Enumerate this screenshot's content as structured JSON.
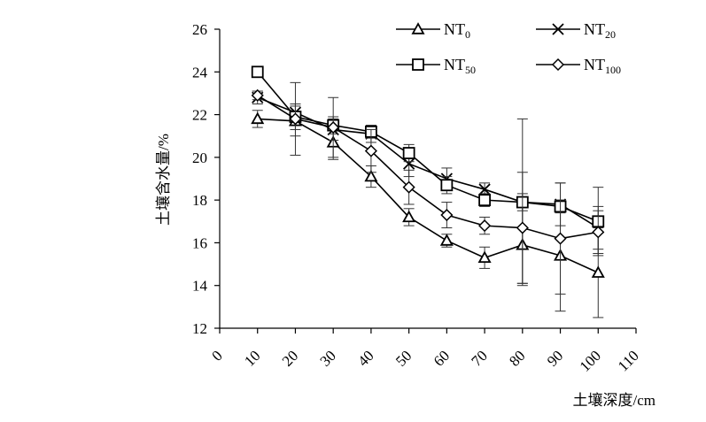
{
  "chart_data": {
    "type": "line",
    "xlabel": "土壤深度/cm",
    "ylabel": "土壤含水量/%",
    "xlim": [
      0,
      110
    ],
    "ylim": [
      12,
      26
    ],
    "x_ticks": [
      "0",
      "10",
      "20",
      "30",
      "40",
      "50",
      "60",
      "70",
      "80",
      "90",
      "100",
      "110"
    ],
    "y_ticks": [
      "12",
      "14",
      "16",
      "18",
      "20",
      "22",
      "24",
      "26"
    ],
    "legend_position": "top-right",
    "grid": false,
    "series": [
      {
        "name": "NT",
        "subscript": "0",
        "marker": "triangle",
        "x": [
          10,
          20,
          30,
          40,
          50,
          60,
          70,
          80,
          90,
          100
        ],
        "values": [
          21.8,
          21.7,
          20.7,
          19.1,
          17.2,
          16.1,
          15.3,
          15.9,
          15.4,
          14.6
        ],
        "error": [
          0.4,
          0.7,
          0.8,
          0.5,
          0.4,
          0.3,
          0.5,
          1.8,
          2.6,
          2.1
        ]
      },
      {
        "name": "NT",
        "subscript": "20",
        "marker": "x",
        "x": [
          10,
          20,
          30,
          40,
          50,
          60,
          70,
          80,
          90,
          100
        ],
        "values": [
          22.8,
          22.1,
          21.3,
          21.1,
          19.7,
          19.0,
          18.5,
          17.9,
          17.8,
          16.7
        ],
        "error": [
          0.3,
          0.4,
          0.5,
          0.4,
          0.6,
          0.5,
          0.3,
          0.4,
          1.0,
          1.0
        ]
      },
      {
        "name": "NT",
        "subscript": "50",
        "marker": "square",
        "x": [
          10,
          20,
          30,
          40,
          50,
          60,
          70,
          80,
          90,
          100
        ],
        "values": [
          24.0,
          21.9,
          21.5,
          21.2,
          20.2,
          18.7,
          18.0,
          17.9,
          17.7,
          17.0
        ],
        "error": [
          0.2,
          0.6,
          0.4,
          0.3,
          0.4,
          0.4,
          0.3,
          3.9,
          0.3,
          1.6
        ]
      },
      {
        "name": "NT",
        "subscript": "100",
        "marker": "diamond",
        "x": [
          10,
          20,
          30,
          40,
          50,
          60,
          70,
          80,
          90,
          100
        ],
        "values": [
          22.9,
          21.8,
          21.4,
          20.3,
          18.6,
          17.3,
          16.8,
          16.7,
          16.2,
          16.5
        ],
        "error": [
          0.2,
          1.7,
          1.4,
          1.0,
          0.8,
          0.6,
          0.4,
          2.6,
          2.6,
          1.0
        ]
      }
    ]
  }
}
